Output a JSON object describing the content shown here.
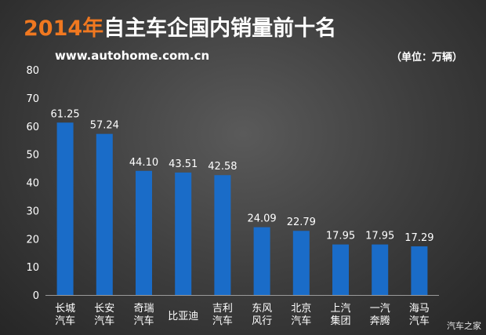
{
  "header": {
    "title_year": "2014年",
    "title_rest": "自主车企国内销量前十名",
    "source": "www.autohome.com.cn",
    "unit": "（单位：万辆）",
    "watermark": "汽车之家"
  },
  "colors": {
    "bar": "#1a6cc8",
    "title_accent": "#f07820"
  },
  "chart_data": {
    "type": "bar",
    "categories": [
      [
        "长城",
        "汽车"
      ],
      [
        "长安",
        "汽车"
      ],
      [
        "奇瑞",
        "汽车"
      ],
      [
        "比亚迪"
      ],
      [
        "吉利",
        "汽车"
      ],
      [
        "东风",
        "风行"
      ],
      [
        "北京",
        "汽车"
      ],
      [
        "上汽",
        "集团"
      ],
      [
        "一汽",
        "奔腾"
      ],
      [
        "海马",
        "汽车"
      ]
    ],
    "values": [
      61.25,
      57.24,
      44.1,
      43.51,
      42.58,
      24.09,
      22.79,
      17.95,
      17.95,
      17.29
    ],
    "data_labels": [
      "61.25",
      "57.24",
      "44.10",
      "43.51",
      "42.58",
      "24.09",
      "22.79",
      "17.95",
      "17.95",
      "17.29"
    ],
    "ylim": [
      0,
      80
    ],
    "yticks": [
      0,
      10,
      20,
      30,
      40,
      50,
      60,
      70,
      80
    ],
    "grid": false,
    "legend": "none"
  }
}
